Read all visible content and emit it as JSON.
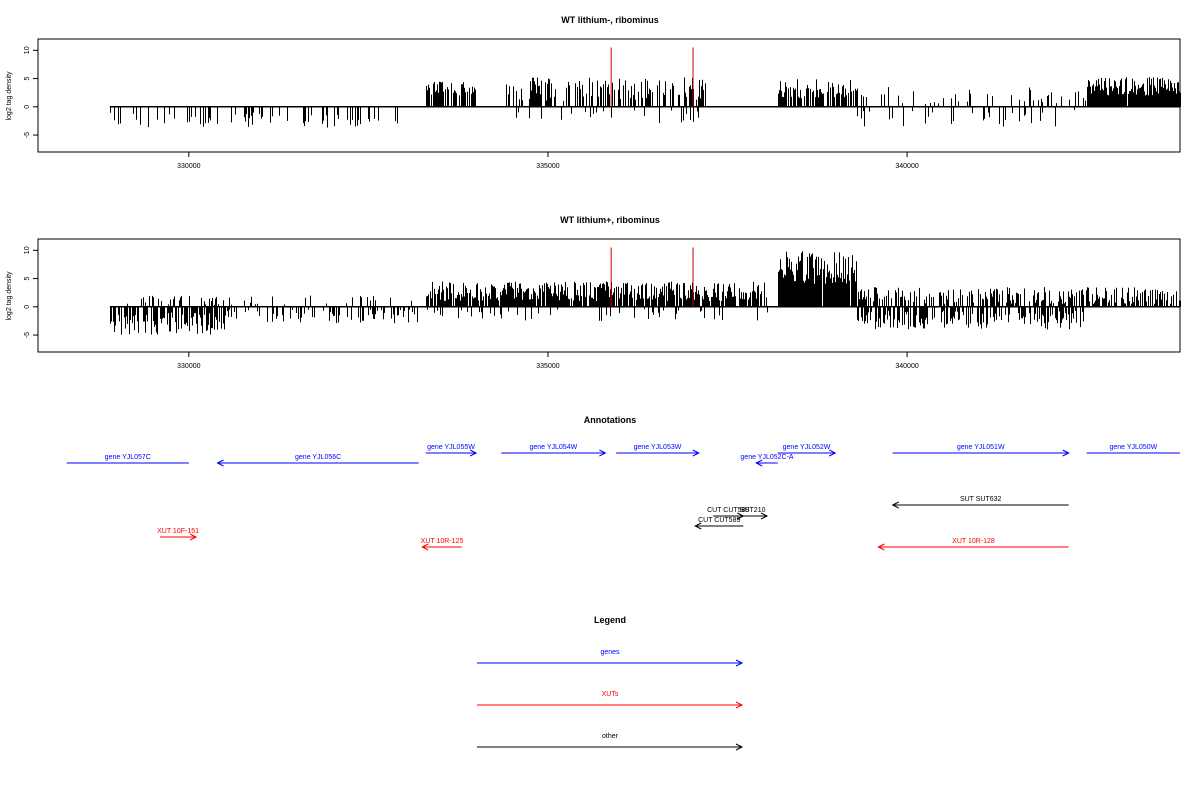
{
  "colors": {
    "genes": "#0000ff",
    "xuts": "#ff0000",
    "other": "#000000",
    "bars": "#000000",
    "markers": "#cc0000"
  },
  "chart_data": [
    {
      "type": "bar",
      "title": "WT lithium-, ribominus",
      "ylabel": "log2 tag density",
      "xlabel": "",
      "xlim": [
        327900,
        343800
      ],
      "ylim": [
        -8,
        12
      ],
      "xticks": [
        330000,
        335000,
        340000
      ],
      "xtick_labels": [
        "330000",
        "335000",
        "340000"
      ],
      "yticks": [
        -5,
        0,
        5,
        10
      ],
      "ytick_labels": [
        "-5",
        "0",
        "5",
        "10"
      ],
      "baseline_range": [
        328900,
        343800
      ],
      "vertical_markers": [
        335880,
        337020
      ],
      "regions": [
        {
          "start": 328900,
          "end": 332900,
          "sign": -1,
          "min": 1.0,
          "max": 3.8,
          "density": 0.25
        },
        {
          "start": 333300,
          "end": 334000,
          "sign": 1,
          "min": 2.0,
          "max": 4.5,
          "density": 0.7
        },
        {
          "start": 334400,
          "end": 337200,
          "sign": 1,
          "min": 1.0,
          "max": 5.2,
          "density": 0.55
        },
        {
          "start": 334400,
          "end": 337200,
          "sign": -1,
          "min": 0.5,
          "max": 3.0,
          "density": 0.1
        },
        {
          "start": 338200,
          "end": 339300,
          "sign": 1,
          "min": 1.5,
          "max": 5.0,
          "density": 0.7
        },
        {
          "start": 339300,
          "end": 342500,
          "sign": 1,
          "min": 0.5,
          "max": 3.5,
          "density": 0.2
        },
        {
          "start": 339300,
          "end": 342500,
          "sign": -1,
          "min": 0.5,
          "max": 3.5,
          "density": 0.15
        },
        {
          "start": 342500,
          "end": 343800,
          "sign": 1,
          "min": 2.0,
          "max": 5.3,
          "density": 0.95
        }
      ]
    },
    {
      "type": "bar",
      "title": "WT lithium+, ribominus",
      "ylabel": "log2 tag density",
      "xlabel": "",
      "xlim": [
        327900,
        343800
      ],
      "ylim": [
        -8,
        12
      ],
      "xticks": [
        330000,
        335000,
        340000
      ],
      "xtick_labels": [
        "330000",
        "335000",
        "340000"
      ],
      "yticks": [
        -5,
        0,
        5,
        10
      ],
      "ytick_labels": [
        "-5",
        "0",
        "5",
        "10"
      ],
      "baseline_range": [
        328900,
        343800
      ],
      "vertical_markers": [
        335880,
        337020
      ],
      "regions": [
        {
          "start": 328900,
          "end": 330500,
          "sign": -1,
          "min": 1.0,
          "max": 5.0,
          "density": 0.7
        },
        {
          "start": 328900,
          "end": 330500,
          "sign": 1,
          "min": 0.3,
          "max": 2.0,
          "density": 0.2
        },
        {
          "start": 330500,
          "end": 333200,
          "sign": -1,
          "min": 0.5,
          "max": 3.0,
          "density": 0.35
        },
        {
          "start": 330500,
          "end": 333200,
          "sign": 1,
          "min": 0.3,
          "max": 2.0,
          "density": 0.12
        },
        {
          "start": 333300,
          "end": 338100,
          "sign": 1,
          "min": 1.0,
          "max": 4.5,
          "density": 0.9
        },
        {
          "start": 333300,
          "end": 338100,
          "sign": -1,
          "min": 0.3,
          "max": 2.5,
          "density": 0.15
        },
        {
          "start": 338200,
          "end": 339300,
          "sign": 1,
          "min": 4.0,
          "max": 10.0,
          "density": 0.95
        },
        {
          "start": 339300,
          "end": 342500,
          "sign": 1,
          "min": 0.5,
          "max": 3.5,
          "density": 0.6
        },
        {
          "start": 339300,
          "end": 342500,
          "sign": -1,
          "min": 0.5,
          "max": 4.0,
          "density": 0.6
        },
        {
          "start": 342500,
          "end": 343800,
          "sign": 1,
          "min": 0.5,
          "max": 3.5,
          "density": 0.7
        }
      ]
    },
    {
      "type": "annotation-track",
      "title": "Annotations",
      "xlim": [
        327900,
        343800
      ],
      "features": [
        {
          "label": "gene YJL057C",
          "category": "genes",
          "start": 328300,
          "end": 330000,
          "direction": "none",
          "row": 1
        },
        {
          "label": "gene YJL056C",
          "category": "genes",
          "start": 330400,
          "end": 333200,
          "direction": "left",
          "row": 1
        },
        {
          "label": "gene YJL055W",
          "category": "genes",
          "start": 333300,
          "end": 334000,
          "direction": "right",
          "row": 0
        },
        {
          "label": "gene YJL054W",
          "category": "genes",
          "start": 334350,
          "end": 335800,
          "direction": "right",
          "row": 0
        },
        {
          "label": "gene YJL053W",
          "category": "genes",
          "start": 335950,
          "end": 337100,
          "direction": "right",
          "row": 0
        },
        {
          "label": "gene YJL052C-A",
          "category": "genes",
          "start": 337900,
          "end": 338200,
          "direction": "left",
          "row": 1
        },
        {
          "label": "gene YJL052W",
          "category": "genes",
          "start": 338200,
          "end": 339000,
          "direction": "right",
          "row": 0
        },
        {
          "label": "gene YJL051W",
          "category": "genes",
          "start": 339800,
          "end": 342250,
          "direction": "right",
          "row": 0
        },
        {
          "label": "gene YJL050W",
          "category": "genes",
          "start": 342500,
          "end": 343800,
          "direction": "none",
          "row": 0
        },
        {
          "label": "SUT SUT632",
          "category": "other",
          "start": 339800,
          "end": 342250,
          "direction": "left",
          "row": 4
        },
        {
          "label": "CUT CUT589",
          "category": "other",
          "start": 337300,
          "end": 337720,
          "direction": "right",
          "row": 5
        },
        {
          "label": "SUT210",
          "category": "other",
          "start": 337650,
          "end": 338050,
          "direction": "right",
          "row": 5
        },
        {
          "label": "CUT CUT589",
          "category": "other",
          "start": 337050,
          "end": 337720,
          "direction": "left",
          "row": 6
        },
        {
          "label": "XUT 10F-151",
          "category": "xuts",
          "start": 329600,
          "end": 330100,
          "direction": "right",
          "row": 7
        },
        {
          "label": "XUT 10R-125",
          "category": "xuts",
          "start": 333250,
          "end": 333800,
          "direction": "left",
          "row": 8
        },
        {
          "label": "XUT 10R-128",
          "category": "xuts",
          "start": 339600,
          "end": 342250,
          "direction": "left",
          "row": 8
        }
      ]
    },
    {
      "type": "legend",
      "title": "Legend",
      "entries": [
        {
          "label": "genes",
          "category": "genes"
        },
        {
          "label": "XUTs",
          "category": "xuts"
        },
        {
          "label": "other",
          "category": "other"
        }
      ]
    }
  ]
}
